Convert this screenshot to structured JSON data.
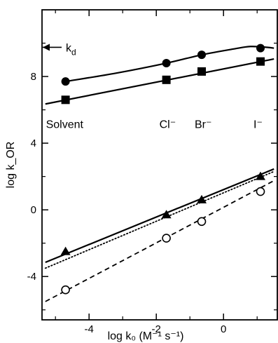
{
  "chart_data": {
    "type": "line",
    "xlabel": "log k₀ (M⁻¹ s⁻¹)",
    "ylabel": "log k_OR",
    "xlim": [
      -5.4,
      1.6
    ],
    "ylim": [
      -6.6,
      12.0
    ],
    "xticks": [
      "-4",
      "-2",
      "0"
    ],
    "xtick_values": [
      -4,
      -2,
      0
    ],
    "yticks": [
      "8",
      "4",
      "0",
      "-4"
    ],
    "ytick_values": [
      8,
      4,
      0,
      -4
    ],
    "grid": false,
    "annotations": {
      "kd": {
        "text": "k",
        "subscript": "d",
        "value": 9.75
      },
      "categories": [
        {
          "text": "Solvent",
          "x": -4.7
        },
        {
          "text": "Cl⁻",
          "x": -1.7
        },
        {
          "text": "Br⁻",
          "x": -0.65
        },
        {
          "text": "I⁻",
          "x": 1.1
        }
      ]
    },
    "series": [
      {
        "marker": "filled-circle",
        "line": "solid",
        "points": [
          [
            -4.7,
            7.7
          ],
          [
            -1.7,
            8.8
          ],
          [
            -0.65,
            9.3
          ],
          [
            1.1,
            9.7
          ]
        ],
        "fit": [
          [
            -4.7,
            7.7
          ],
          [
            -3.2,
            8.2
          ],
          [
            -1.7,
            8.8
          ],
          [
            -0.65,
            9.3
          ],
          [
            0.3,
            9.65
          ],
          [
            0.8,
            9.8
          ],
          [
            1.3,
            9.75
          ],
          [
            1.5,
            9.7
          ]
        ]
      },
      {
        "marker": "filled-square",
        "line": "solid",
        "points": [
          [
            -4.7,
            6.6
          ],
          [
            -1.7,
            7.8
          ],
          [
            -0.65,
            8.3
          ],
          [
            1.1,
            8.9
          ]
        ],
        "fit": [
          [
            -5.3,
            6.35
          ],
          [
            1.5,
            9.05
          ]
        ]
      },
      {
        "marker": "filled-triangle",
        "line": "solid",
        "points": [
          [
            -4.7,
            -2.5
          ],
          [
            -1.7,
            -0.3
          ],
          [
            -0.65,
            0.6
          ],
          [
            1.1,
            2.0
          ]
        ],
        "fit": [
          [
            -5.3,
            -3.15
          ],
          [
            1.5,
            2.45
          ]
        ]
      },
      {
        "marker": "none",
        "line": "dotted",
        "points": [],
        "fit": [
          [
            -5.3,
            -3.5
          ],
          [
            1.5,
            2.3
          ]
        ]
      },
      {
        "marker": "open-circle",
        "line": "dashed",
        "points": [
          [
            -4.7,
            -4.8
          ],
          [
            -1.7,
            -1.7
          ],
          [
            -0.65,
            -0.7
          ],
          [
            1.1,
            1.1
          ]
        ],
        "fit": [
          [
            -5.3,
            -5.5
          ],
          [
            1.5,
            1.75
          ]
        ]
      }
    ]
  }
}
